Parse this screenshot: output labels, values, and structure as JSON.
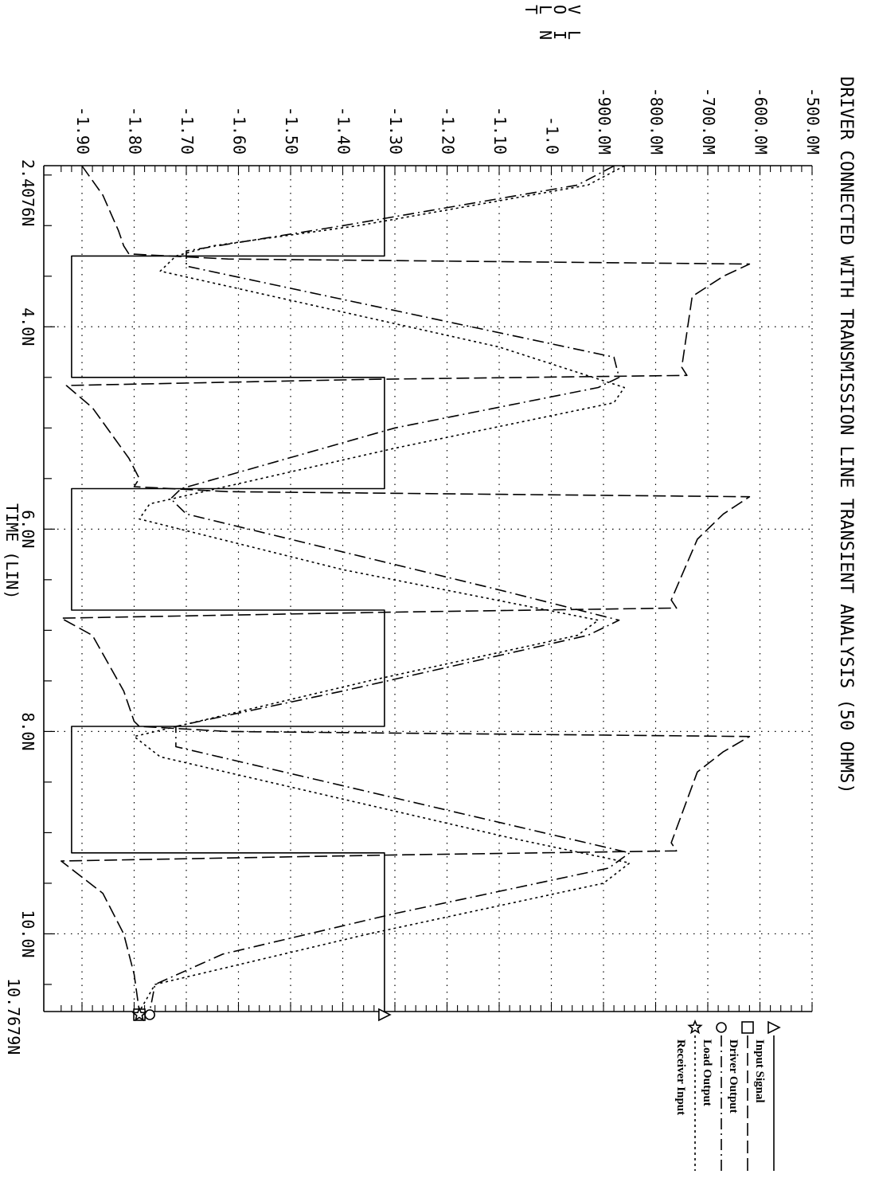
{
  "chart_data": {
    "type": "line",
    "title": "DRIVER CONNECTED WITH TRANSMISSION LINE TRANSIENT ANALYSIS (50 OHMS)",
    "ylabel_chars": [
      "V",
      "O",
      "L",
      "T",
      "",
      "L",
      "I",
      "N"
    ],
    "xlabel": "TIME (LIN)",
    "x_start_label": "2.4076N",
    "x_end_label": "10.7679N",
    "xlim": [
      2.4076,
      10.7679
    ],
    "ylim": [
      -1.95,
      -0.5
    ],
    "x_ticks": [
      {
        "value": 4.0,
        "label": "4.0N"
      },
      {
        "value": 6.0,
        "label": "6.0N"
      },
      {
        "value": 8.0,
        "label": "8.0N"
      },
      {
        "value": 10.0,
        "label": "10.0N"
      }
    ],
    "y_ticks": [
      {
        "value": -0.5,
        "label": "-500.0M"
      },
      {
        "value": -0.6,
        "label": "-600.0M"
      },
      {
        "value": -0.7,
        "label": "-700.0M"
      },
      {
        "value": -0.8,
        "label": "-800.0M"
      },
      {
        "value": -0.9,
        "label": "-900.0M"
      },
      {
        "value": -1.0,
        "label": "-1.0"
      },
      {
        "value": -1.1,
        "label": "-1.10"
      },
      {
        "value": -1.2,
        "label": "-1.20"
      },
      {
        "value": -1.3,
        "label": "-1.30"
      },
      {
        "value": -1.4,
        "label": "-1.40"
      },
      {
        "value": -1.5,
        "label": "-1.50"
      },
      {
        "value": -1.6,
        "label": "-1.60"
      },
      {
        "value": -1.7,
        "label": "-1.70"
      },
      {
        "value": -1.8,
        "label": "-1.80"
      },
      {
        "value": -1.9,
        "label": "-1.90"
      }
    ],
    "grid": true,
    "legend_position": "right",
    "series": [
      {
        "name": "Input Signal",
        "marker": "triangle",
        "dash": "solid",
        "points": [
          [
            2.41,
            -1.32
          ],
          [
            3.3,
            -1.32
          ],
          [
            3.3,
            -1.92
          ],
          [
            4.5,
            -1.92
          ],
          [
            4.5,
            -1.32
          ],
          [
            5.6,
            -1.32
          ],
          [
            5.6,
            -1.92
          ],
          [
            6.8,
            -1.92
          ],
          [
            6.8,
            -1.32
          ],
          [
            7.95,
            -1.32
          ],
          [
            7.95,
            -1.92
          ],
          [
            9.2,
            -1.92
          ],
          [
            9.2,
            -1.32
          ],
          [
            10.7679,
            -1.32
          ]
        ]
      },
      {
        "name": "Driver Output",
        "marker": "square",
        "dash": "long-dash",
        "points": [
          [
            2.41,
            -1.9
          ],
          [
            2.7,
            -1.86
          ],
          [
            3.05,
            -1.83
          ],
          [
            3.2,
            -1.82
          ],
          [
            3.28,
            -1.81
          ],
          [
            3.33,
            -1.62
          ],
          [
            3.38,
            -0.62
          ],
          [
            3.5,
            -0.67
          ],
          [
            3.7,
            -0.73
          ],
          [
            4.4,
            -0.75
          ],
          [
            4.48,
            -0.74
          ],
          [
            4.52,
            -1.35
          ],
          [
            4.58,
            -1.93
          ],
          [
            4.8,
            -1.88
          ],
          [
            5.3,
            -1.81
          ],
          [
            5.5,
            -1.79
          ],
          [
            5.58,
            -1.8
          ],
          [
            5.63,
            -1.62
          ],
          [
            5.68,
            -0.62
          ],
          [
            5.85,
            -0.67
          ],
          [
            6.1,
            -0.72
          ],
          [
            6.7,
            -0.77
          ],
          [
            6.78,
            -0.76
          ],
          [
            6.82,
            -1.3
          ],
          [
            6.88,
            -1.94
          ],
          [
            7.05,
            -1.88
          ],
          [
            7.6,
            -1.82
          ],
          [
            7.9,
            -1.8
          ],
          [
            7.95,
            -1.79
          ],
          [
            8.0,
            -1.62
          ],
          [
            8.05,
            -0.62
          ],
          [
            8.2,
            -0.67
          ],
          [
            8.4,
            -0.72
          ],
          [
            9.1,
            -0.77
          ],
          [
            9.18,
            -0.76
          ],
          [
            9.22,
            -1.3
          ],
          [
            9.28,
            -1.94
          ],
          [
            9.6,
            -1.86
          ],
          [
            10.0,
            -1.82
          ],
          [
            10.4,
            -1.8
          ],
          [
            10.7679,
            -1.79
          ]
        ]
      },
      {
        "name": "Load Output",
        "marker": "circle",
        "dash": "dash-dot",
        "points": [
          [
            2.41,
            -0.88
          ],
          [
            2.6,
            -0.95
          ],
          [
            3.0,
            -1.4
          ],
          [
            3.25,
            -1.7
          ],
          [
            3.4,
            -1.7
          ],
          [
            4.3,
            -0.88
          ],
          [
            4.5,
            -0.87
          ],
          [
            4.6,
            -0.91
          ],
          [
            5.0,
            -1.3
          ],
          [
            5.6,
            -1.71
          ],
          [
            5.7,
            -1.73
          ],
          [
            5.85,
            -1.7
          ],
          [
            6.6,
            -1.1
          ],
          [
            6.9,
            -0.87
          ],
          [
            7.05,
            -0.93
          ],
          [
            7.6,
            -1.4
          ],
          [
            7.95,
            -1.72
          ],
          [
            8.15,
            -1.72
          ],
          [
            9.2,
            -0.85
          ],
          [
            9.35,
            -0.89
          ],
          [
            9.8,
            -1.3
          ],
          [
            10.2,
            -1.63
          ],
          [
            10.5,
            -1.76
          ],
          [
            10.7679,
            -1.77
          ]
        ]
      },
      {
        "name": "Receiver Input",
        "marker": "star",
        "dash": "dotted",
        "points": [
          [
            2.41,
            -0.86
          ],
          [
            2.6,
            -0.93
          ],
          [
            3.0,
            -1.37
          ],
          [
            3.2,
            -1.65
          ],
          [
            3.3,
            -1.72
          ],
          [
            3.45,
            -1.75
          ],
          [
            4.2,
            -1.1
          ],
          [
            4.6,
            -0.86
          ],
          [
            4.75,
            -0.88
          ],
          [
            5.2,
            -1.3
          ],
          [
            5.75,
            -1.77
          ],
          [
            5.9,
            -1.79
          ],
          [
            6.4,
            -1.4
          ],
          [
            6.9,
            -0.91
          ],
          [
            7.05,
            -0.95
          ],
          [
            7.5,
            -1.35
          ],
          [
            8.05,
            -1.8
          ],
          [
            8.25,
            -1.75
          ],
          [
            9.05,
            -1.08
          ],
          [
            9.3,
            -0.85
          ],
          [
            9.5,
            -0.9
          ],
          [
            10.0,
            -1.35
          ],
          [
            10.5,
            -1.76
          ],
          [
            10.7679,
            -1.79
          ]
        ]
      }
    ]
  }
}
